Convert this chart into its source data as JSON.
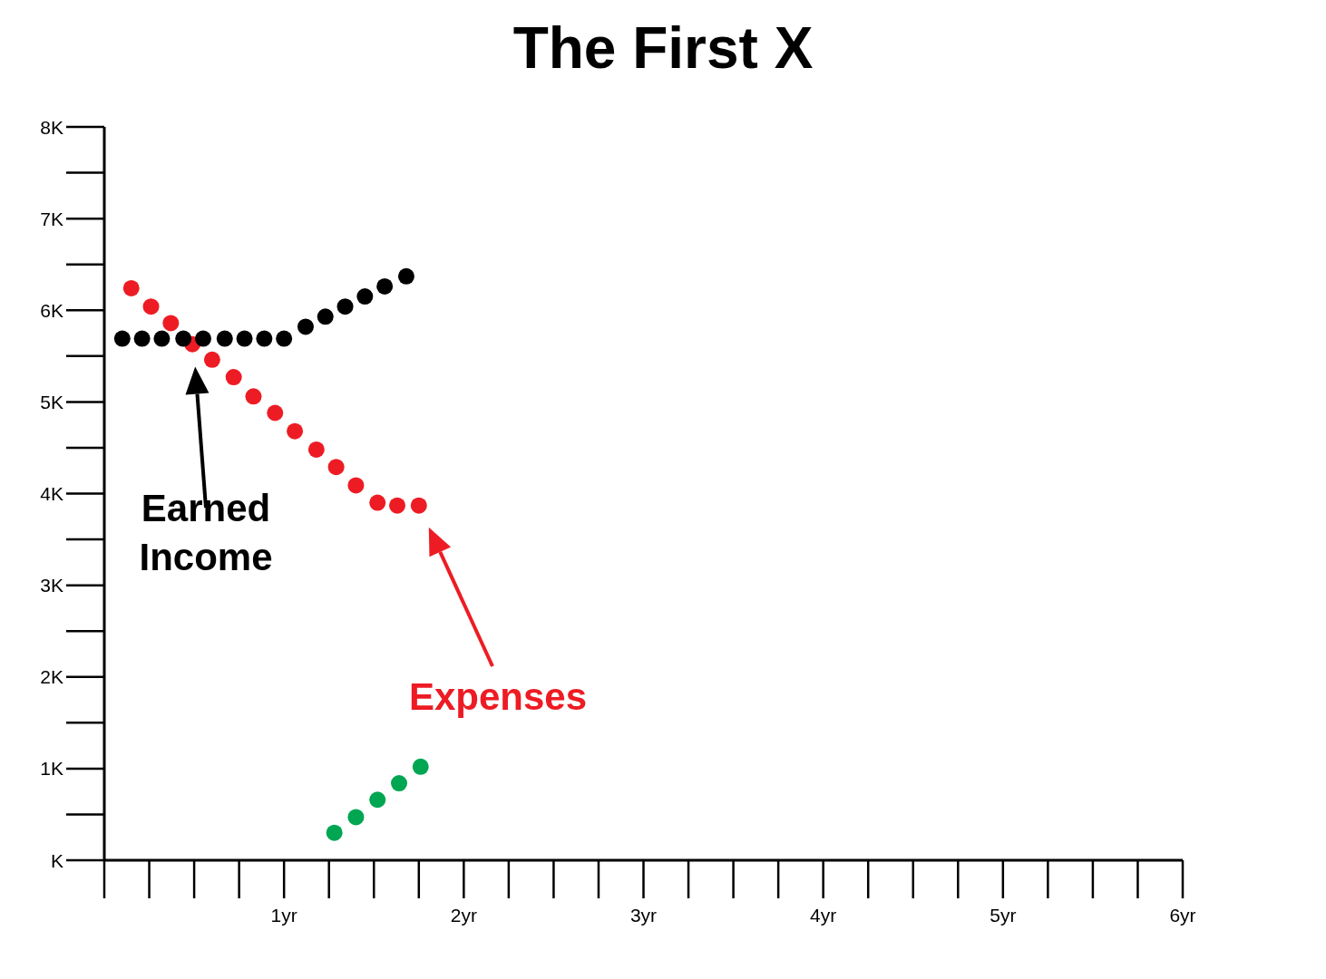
{
  "chart_data": {
    "type": "scatter",
    "title": "The First X",
    "marker": "circle",
    "xlim": [
      0,
      6
    ],
    "ylim": [
      0,
      8000
    ],
    "xticks": [
      {
        "value": 0,
        "label": null
      },
      {
        "value": 1,
        "label": "1yr"
      },
      {
        "value": 2,
        "label": "2yr"
      },
      {
        "value": 3,
        "label": "3yr"
      },
      {
        "value": 4,
        "label": "4yr"
      },
      {
        "value": 5,
        "label": "5yr"
      },
      {
        "value": 6,
        "label": "6yr"
      }
    ],
    "yticks": [
      {
        "value": 0,
        "label": "K"
      },
      {
        "value": 1000,
        "label": "1K"
      },
      {
        "value": 2000,
        "label": "2K"
      },
      {
        "value": 3000,
        "label": "3K"
      },
      {
        "value": 4000,
        "label": "4K"
      },
      {
        "value": 5000,
        "label": "5K"
      },
      {
        "value": 6000,
        "label": "6K"
      },
      {
        "value": 7000,
        "label": "7K"
      },
      {
        "value": 8000,
        "label": "8K"
      }
    ],
    "series": [
      {
        "color": "#00a651",
        "x": [
          1.28,
          1.4,
          1.52,
          1.64,
          1.76
        ],
        "values": [
          300,
          470,
          660,
          840,
          1020
        ]
      },
      {
        "name": "Expenses",
        "color": "#ed1c24",
        "x": [
          0.15,
          0.26,
          0.37,
          0.49,
          0.6,
          0.72,
          0.83,
          0.95,
          1.06,
          1.18,
          1.29,
          1.4,
          1.52,
          1.63,
          1.75
        ],
        "values": [
          6240,
          6040,
          5860,
          5630,
          5460,
          5270,
          5060,
          4880,
          4680,
          4480,
          4290,
          4090,
          3900,
          3870,
          3870
        ]
      },
      {
        "name": "Earned Income",
        "color": "#000000",
        "x": [
          0.1,
          0.21,
          0.32,
          0.44,
          0.55,
          0.67,
          0.78,
          0.89,
          1.0,
          1.12,
          1.23,
          1.34,
          1.45,
          1.56,
          1.68
        ],
        "values": [
          5690,
          5690,
          5690,
          5690,
          5690,
          5690,
          5690,
          5690,
          5690,
          5820,
          5930,
          6040,
          6150,
          6260,
          6370
        ]
      }
    ]
  }
}
